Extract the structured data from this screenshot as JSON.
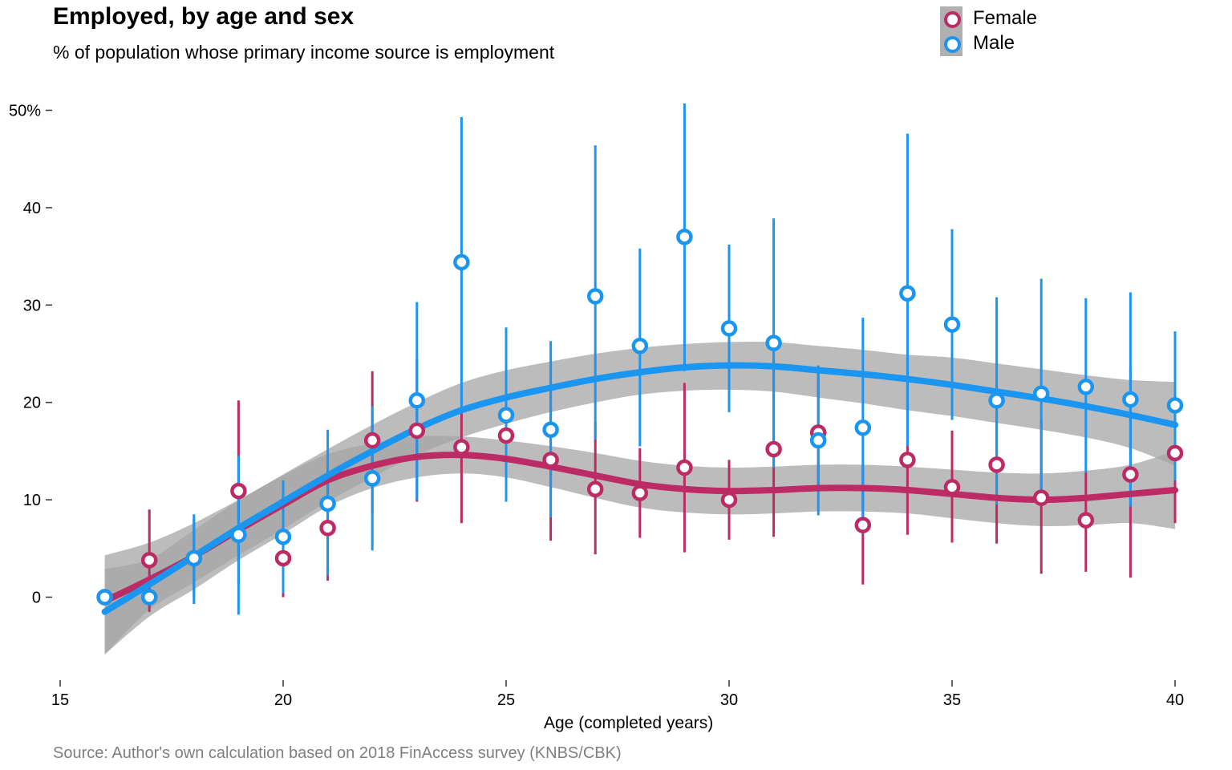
{
  "title": "Employed, by age and sex",
  "subtitle": "% of population whose primary income source is employment",
  "caption": "Source: Author's own calculation based on 2018 FinAccess survey (KNBS/CBK)",
  "chart_data": {
    "type": "scatter",
    "title": "Employed, by age and sex",
    "subtitle": "% of population whose primary income source is employment",
    "xlabel": "Age (completed years)",
    "ylabel": "",
    "xlim": [
      15,
      40
    ],
    "ylim": [
      -8,
      51
    ],
    "x_ticks": [
      15,
      20,
      25,
      30,
      35,
      40
    ],
    "x_tick_labels": [
      "15",
      "20",
      "25",
      "30",
      "35",
      "40"
    ],
    "y_ticks": [
      0,
      10,
      20,
      30,
      40,
      50
    ],
    "y_tick_labels": [
      "0",
      "10",
      "20",
      "30",
      "40",
      "50%"
    ],
    "grid": false,
    "legend_position": "top-right",
    "band_color": "#a6a6a6",
    "series": [
      {
        "name": "Female",
        "color": "#bc2b63",
        "x": [
          16,
          17,
          18,
          19,
          20,
          21,
          22,
          23,
          24,
          25,
          26,
          27,
          28,
          29,
          30,
          31,
          32,
          33,
          34,
          35,
          36,
          37,
          38,
          39,
          40
        ],
        "y": [
          0,
          3.8,
          4,
          10.9,
          4,
          7.1,
          16.1,
          17.1,
          15.4,
          16.6,
          14.1,
          11.1,
          10.7,
          13.3,
          10,
          15.2,
          16.9,
          7.4,
          14.1,
          11.3,
          13.6,
          10.2,
          7.9,
          12.6,
          14.8
        ],
        "ci_low": [
          0,
          -1.5,
          0,
          1.5,
          0,
          1.7,
          8.5,
          9.8,
          7.6,
          11,
          5.8,
          4.4,
          6.1,
          4.6,
          5.9,
          6.2,
          10.8,
          1.3,
          6.4,
          5.6,
          5.5,
          2.4,
          2.6,
          2,
          7.6
        ],
        "ci_high": [
          0,
          9,
          8,
          20.2,
          10,
          13,
          23.2,
          24.5,
          19.5,
          22,
          22.1,
          18,
          15.3,
          22,
          14.1,
          24.3,
          23.3,
          13.6,
          22,
          17.1,
          21.9,
          18.1,
          12.8,
          23.3,
          21.9
        ],
        "smooth": [
          -0.4,
          1.8,
          4.2,
          6.9,
          9.5,
          12.0,
          13.5,
          14.4,
          14.6,
          14.2,
          13.4,
          12.5,
          11.6,
          11.1,
          10.9,
          11.0,
          11.2,
          11.2,
          11.0,
          10.6,
          10.2,
          10.0,
          10.2,
          10.6,
          11.0
        ],
        "smooth_low": [
          -5.9,
          -2,
          0.8,
          3.8,
          6.5,
          9.3,
          11.2,
          12.3,
          12.7,
          12.3,
          11.3,
          10.2,
          9.2,
          8.7,
          8.5,
          8.6,
          8.8,
          8.8,
          8.6,
          8.1,
          7.6,
          7.3,
          7.4,
          7.6,
          7.0
        ],
        "smooth_high": [
          4.3,
          5.6,
          7.6,
          10.0,
          12.5,
          14.7,
          15.8,
          16.5,
          16.5,
          16.1,
          15.5,
          14.8,
          14.0,
          13.5,
          13.3,
          13.4,
          13.6,
          13.6,
          13.4,
          13.1,
          12.8,
          12.7,
          13.0,
          13.6,
          15.0
        ]
      },
      {
        "name": "Male",
        "color": "#1a95f0",
        "x": [
          16,
          17,
          18,
          19,
          20,
          21,
          22,
          23,
          24,
          25,
          26,
          27,
          28,
          29,
          30,
          31,
          32,
          33,
          34,
          35,
          36,
          37,
          38,
          39,
          40
        ],
        "y": [
          0,
          0,
          4,
          6.4,
          6.2,
          9.6,
          12.2,
          20.2,
          34.4,
          18.7,
          17.2,
          30.9,
          25.8,
          37,
          27.6,
          26.1,
          16.1,
          17.4,
          31.2,
          28,
          20.2,
          20.9,
          21.6,
          20.3,
          19.7
        ],
        "ci_low": [
          0,
          0,
          -0.7,
          -1.8,
          0.4,
          2.2,
          4.8,
          10,
          19.5,
          9.8,
          8.2,
          16.2,
          15.5,
          23.2,
          19,
          13.3,
          8.4,
          6.5,
          15.5,
          18.2,
          9.5,
          10.3,
          12.8,
          9.3,
          12
        ],
        "ci_high": [
          0,
          0,
          8.5,
          14.5,
          12,
          17.2,
          19.6,
          30.3,
          49.3,
          27.7,
          26.3,
          46.4,
          35.8,
          50.7,
          36.2,
          38.9,
          23.8,
          28.7,
          47.6,
          37.8,
          30.8,
          32.7,
          30.7,
          31.3,
          27.3
        ],
        "smooth": [
          -1.5,
          1.3,
          4.2,
          7.1,
          9.8,
          12.5,
          15.0,
          17.3,
          19.2,
          20.5,
          21.5,
          22.4,
          23.1,
          23.6,
          23.8,
          23.7,
          23.3,
          22.9,
          22.4,
          21.8,
          21.1,
          20.4,
          19.6,
          18.7,
          17.7
        ],
        "smooth_low": [
          -5.9,
          -1.3,
          1.5,
          4.3,
          7.0,
          9.8,
          12.3,
          14.6,
          16.4,
          17.8,
          19.0,
          20.0,
          20.8,
          21.2,
          21.3,
          21.1,
          20.5,
          19.9,
          19.2,
          18.6,
          17.9,
          17.2,
          16.4,
          15.3,
          13.5
        ],
        "smooth_high": [
          2.9,
          3.9,
          6.9,
          9.9,
          12.6,
          15.2,
          17.7,
          20.0,
          22.0,
          23.3,
          24.2,
          25.0,
          25.6,
          26.0,
          26.2,
          26.2,
          25.8,
          25.4,
          24.9,
          24.6,
          24.0,
          23.4,
          22.8,
          22.3,
          22.1
        ]
      }
    ]
  }
}
